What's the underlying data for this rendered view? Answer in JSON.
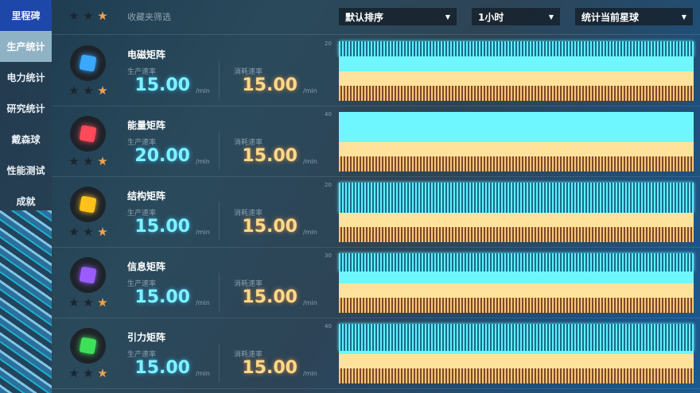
{
  "sidebar": {
    "items": [
      {
        "label": "里程碑"
      },
      {
        "label": "生产统计"
      },
      {
        "label": "电力统计"
      },
      {
        "label": "研究统计"
      },
      {
        "label": "戴森球"
      },
      {
        "label": "性能测试"
      },
      {
        "label": "成就"
      }
    ],
    "selected": "生产统计"
  },
  "header": {
    "favorite_filter": "收藏夹筛选",
    "sort": "默认排序",
    "period": "1小时",
    "scope": "统计当前星球",
    "stars": [
      "1",
      "2",
      "3"
    ]
  },
  "labels": {
    "production": "生产速率",
    "consumption": "消耗速率",
    "unit": "/min"
  },
  "colors": {
    "production": "#6ff7ff",
    "consumption": "#ffd98a",
    "accent_star": "#f2a24a"
  },
  "items": [
    {
      "name": "电磁矩阵",
      "production": "15.00",
      "consumption": "15.00",
      "chart_max": "20",
      "color": "#3aa8ff"
    },
    {
      "name": "能量矩阵",
      "production": "20.00",
      "consumption": "15.00",
      "chart_max": "40",
      "color": "#ff4a5a"
    },
    {
      "name": "结构矩阵",
      "production": "15.00",
      "consumption": "15.00",
      "chart_max": "20",
      "color": "#ffc21a"
    },
    {
      "name": "信息矩阵",
      "production": "15.00",
      "consumption": "15.00",
      "chart_max": "30",
      "color": "#9a5cff"
    },
    {
      "name": "引力矩阵",
      "production": "15.00",
      "consumption": "15.00",
      "chart_max": "40",
      "color": "#3ee05a"
    }
  ]
}
